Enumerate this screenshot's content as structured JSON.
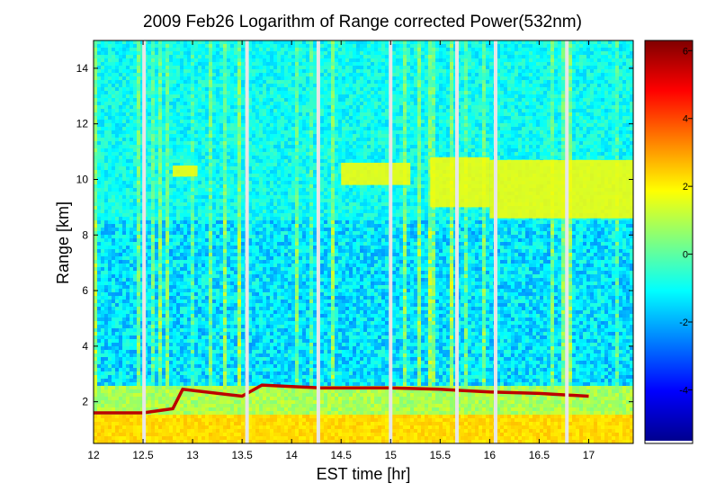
{
  "chart_data": {
    "type": "heatmap",
    "title": "2009 Feb26  Logarithm of Range corrected Power(532nm)",
    "xlabel": "EST time [hr]",
    "ylabel": "Range [km]",
    "xlim": [
      12.0,
      17.45
    ],
    "ylim": [
      0.5,
      15.0
    ],
    "x_ticks": [
      "12",
      "12.5",
      "13",
      "13.5",
      "14",
      "14.5",
      "15",
      "15.5",
      "16",
      "16.5",
      "17"
    ],
    "y_ticks": [
      "2",
      "4",
      "6",
      "8",
      "10",
      "12",
      "14"
    ],
    "colorbar": {
      "colormap": "jet",
      "range": [
        -5.5,
        6.3
      ],
      "ticks": [
        "6",
        "4",
        "2",
        "0",
        "-2",
        "-4"
      ]
    },
    "boundary_layer": [
      {
        "t": 12.0,
        "km": 1.6
      },
      {
        "t": 12.5,
        "km": 1.6
      },
      {
        "t": 12.8,
        "km": 1.75
      },
      {
        "t": 12.9,
        "km": 2.45
      },
      {
        "t": 13.5,
        "km": 2.2
      },
      {
        "t": 13.7,
        "km": 2.6
      },
      {
        "t": 14.0,
        "km": 2.55
      },
      {
        "t": 14.3,
        "km": 2.5
      },
      {
        "t": 15.0,
        "km": 2.5
      },
      {
        "t": 15.5,
        "km": 2.45
      },
      {
        "t": 16.0,
        "km": 2.35
      },
      {
        "t": 16.5,
        "km": 2.3
      },
      {
        "t": 17.0,
        "km": 2.2
      }
    ],
    "cloud_layers": [
      {
        "t_start": 12.8,
        "t_end": 13.05,
        "km_low": 10.1,
        "km_high": 10.5
      },
      {
        "t_start": 14.5,
        "t_end": 15.2,
        "km_low": 9.8,
        "km_high": 10.6
      },
      {
        "t_start": 15.4,
        "t_end": 16.0,
        "km_low": 9.0,
        "km_high": 10.8
      },
      {
        "t_start": 16.0,
        "t_end": 17.45,
        "km_low": 8.6,
        "km_high": 10.7
      }
    ],
    "data_gaps": [
      12.51,
      13.55,
      14.27,
      15.0,
      15.67,
      16.06,
      16.78
    ]
  }
}
